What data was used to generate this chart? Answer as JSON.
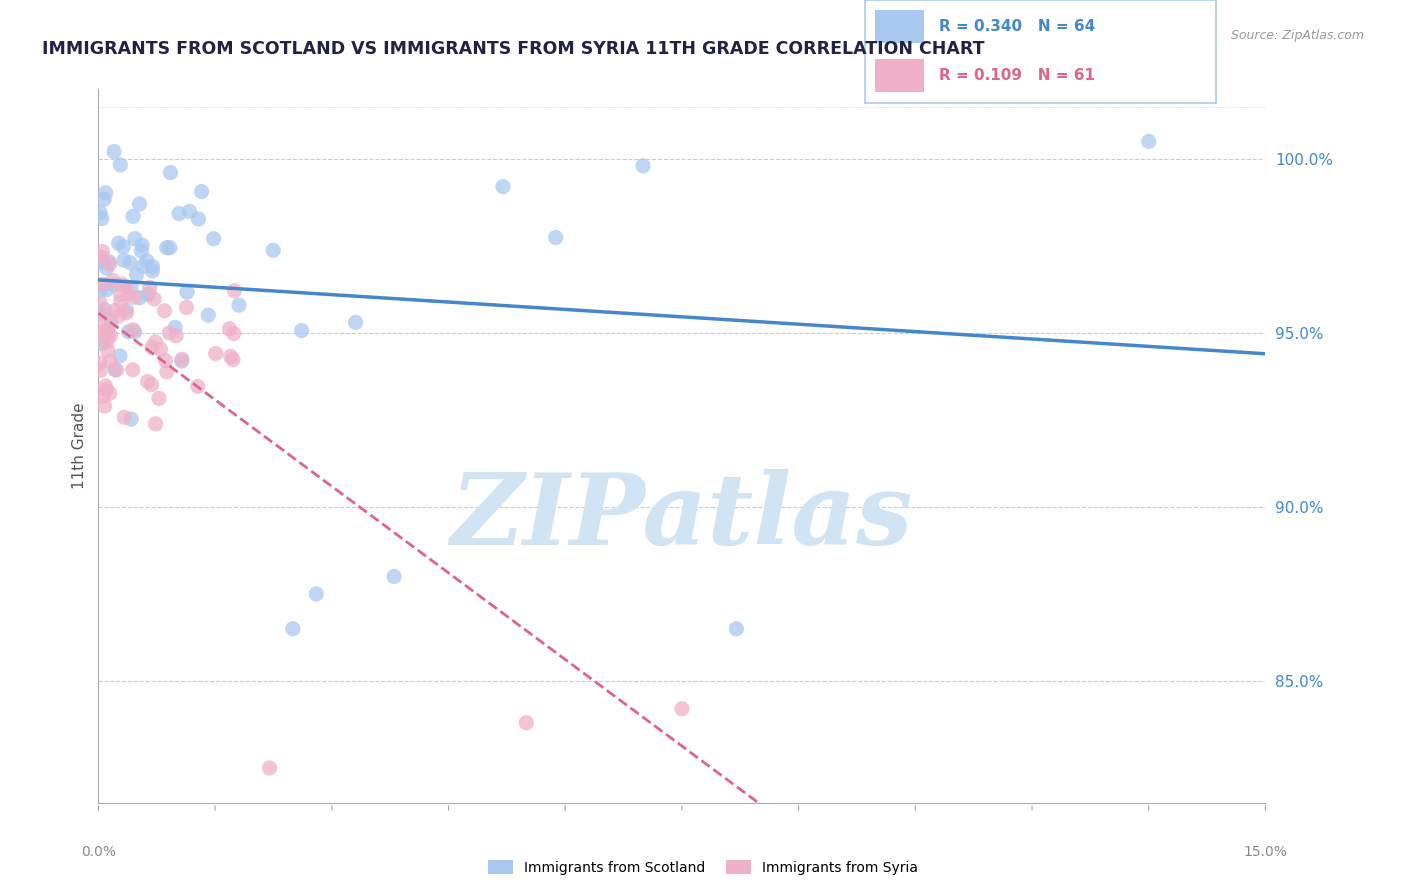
{
  "title": "IMMIGRANTS FROM SCOTLAND VS IMMIGRANTS FROM SYRIA 11TH GRADE CORRELATION CHART",
  "source_text": "Source: ZipAtlas.com",
  "ylabel": "11th Grade",
  "right_yticks": [
    85.0,
    90.0,
    95.0,
    100.0
  ],
  "x_min": 0.0,
  "x_max": 15.0,
  "y_min": 81.5,
  "y_max": 102.0,
  "scotland_R": 0.34,
  "scotland_N": 64,
  "syria_R": 0.109,
  "syria_N": 61,
  "scotland_color": "#A8C8F0",
  "syria_color": "#F0B0C8",
  "scotland_line_color": "#4488CC",
  "syria_line_color": "#DD6688",
  "background_color": "#FFFFFF",
  "grid_color": "#CCCCCC",
  "title_color": "#222244",
  "watermark_color": "#D0E4F4",
  "watermark_text": "ZIPatlas",
  "legend_box_color": "#FFFFFF",
  "legend_border_color": "#AACCEE",
  "right_axis_color": "#4488CC",
  "bottom_label_color": "#888888"
}
